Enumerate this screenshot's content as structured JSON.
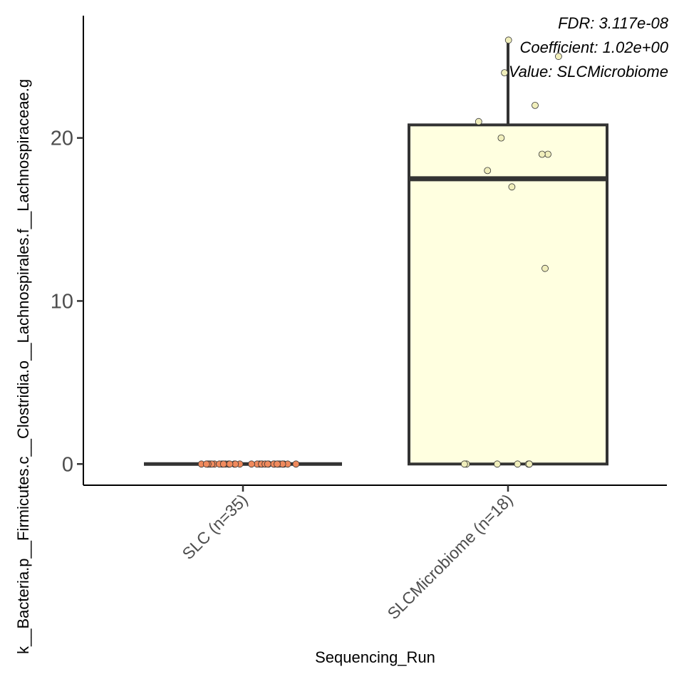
{
  "chart_data": {
    "type": "box",
    "title": "",
    "xlabel": "Sequencing_Run",
    "ylabel": "k__Bacteria.p__Firmicutes.c__Clostridia.o__Lachnospirales.f__Lachnospiraceae.g",
    "ylim": [
      -1.3,
      27.5
    ],
    "yticks": [
      0,
      10,
      20
    ],
    "categories": [
      "SLC (n=35)",
      "SLCMicrobiome (n=18)"
    ],
    "boxes": [
      {
        "category": "SLC (n=35)",
        "min": 0,
        "q1": 0,
        "median": 0,
        "q3": 0,
        "max": 0,
        "fill": "#ffffff",
        "point_fill": "#f08a5d"
      },
      {
        "category": "SLCMicrobiome (n=18)",
        "min": 0,
        "q1": 0,
        "median": 17.5,
        "q3": 20.8,
        "max": 26,
        "fill": "#ffffe0",
        "point_fill": "#f0eebb"
      }
    ],
    "points": [
      {
        "category": "SLC (n=35)",
        "values": [
          0,
          0,
          0,
          0,
          0,
          0,
          0,
          0,
          0,
          0,
          0,
          0,
          0,
          0,
          0,
          0,
          0,
          0,
          0,
          0,
          0,
          0,
          0,
          0,
          0,
          0,
          0,
          0,
          0,
          0,
          0,
          0,
          0,
          0,
          0
        ]
      },
      {
        "category": "SLCMicrobiome (n=18)",
        "values": [
          26,
          25,
          24,
          22,
          21,
          20,
          19,
          19,
          18,
          17,
          12,
          0,
          0,
          0,
          0,
          0,
          0,
          0
        ]
      }
    ],
    "annotations": [
      "FDR: 3.117e-08",
      "Coefficient: 1.02e+00",
      "Value: SLCMicrobiome"
    ],
    "grid": false,
    "legend": "none"
  }
}
